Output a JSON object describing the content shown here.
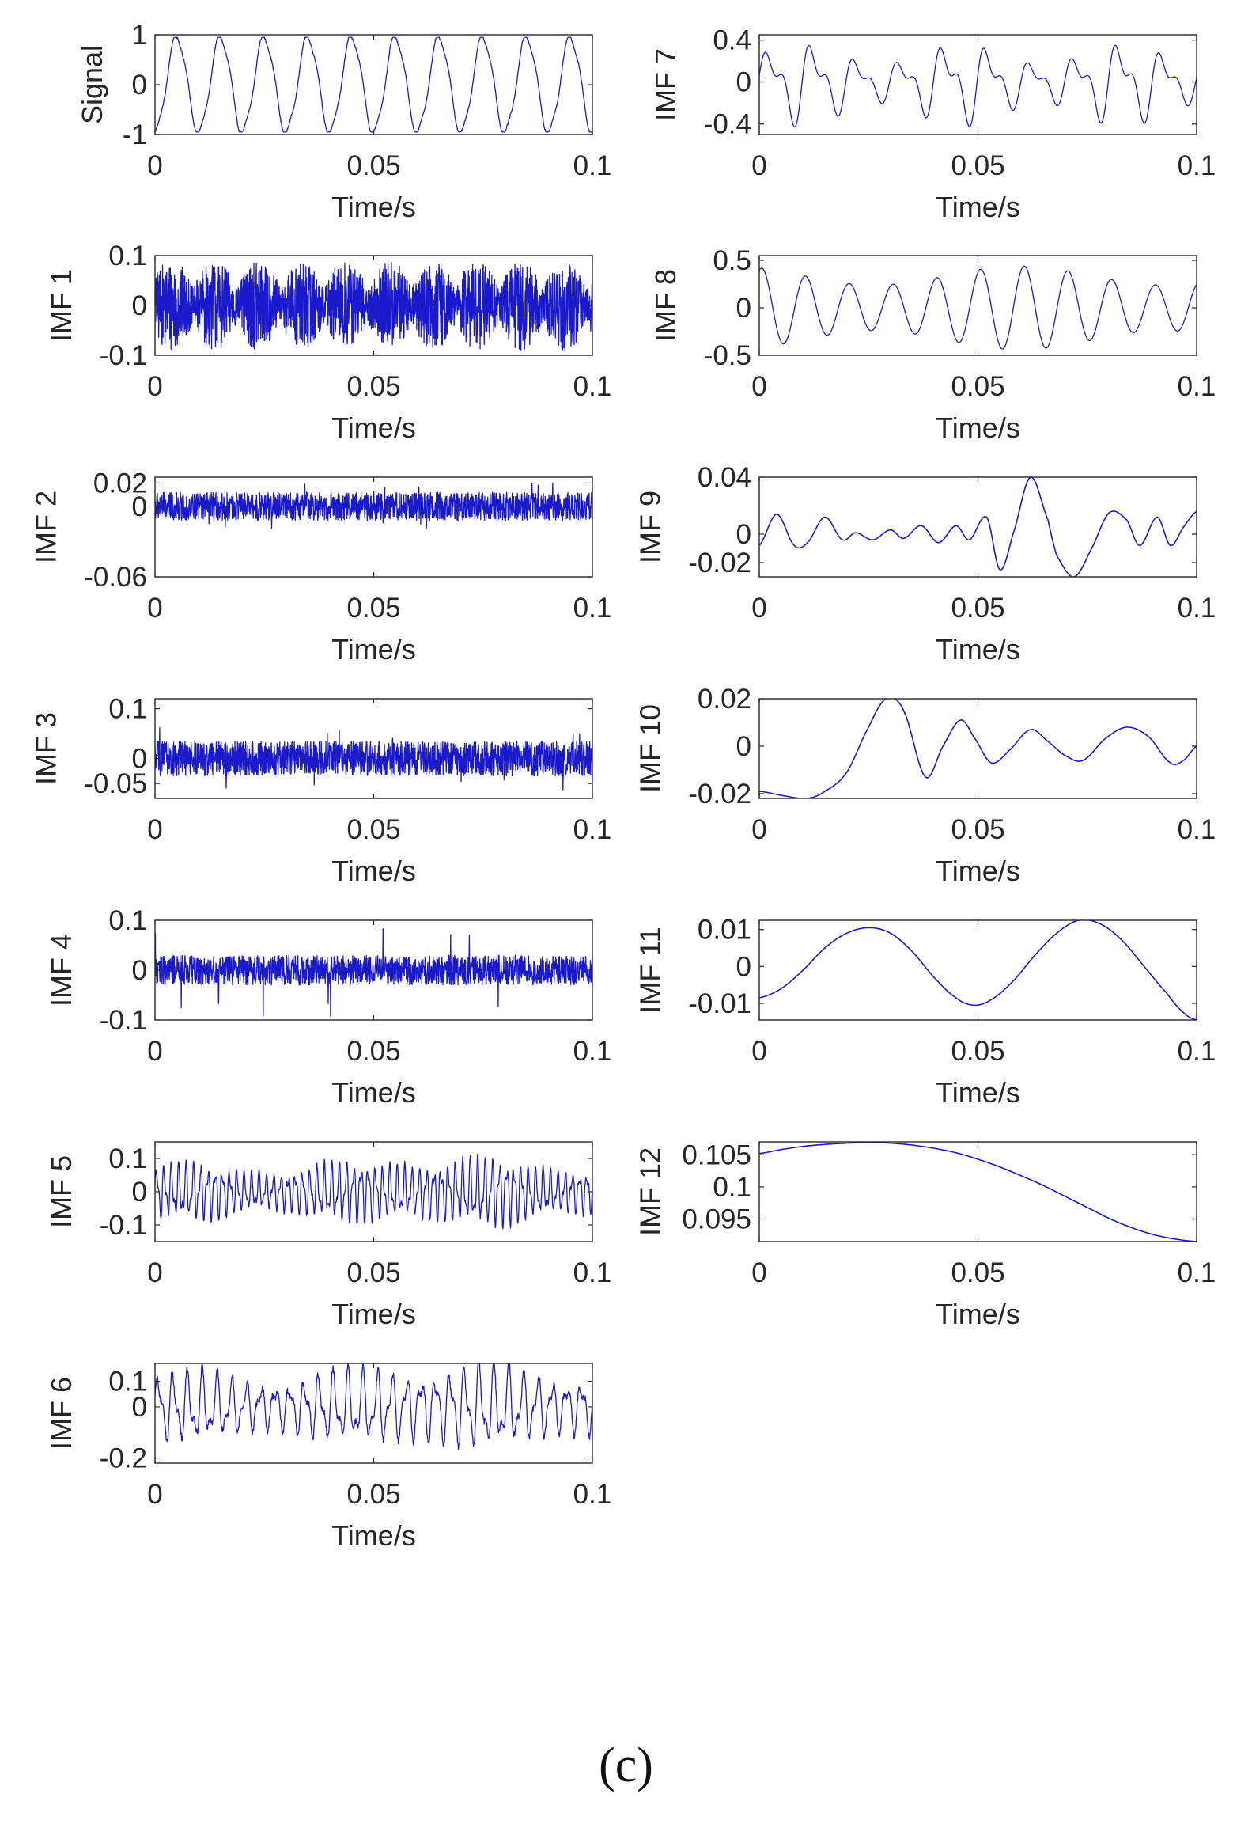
{
  "figure": {
    "caption": "(c)"
  },
  "colors": {
    "line": "#1a1acc",
    "axis": "#262626",
    "background": "#ffffff"
  },
  "chart_data": [
    {
      "type": "line",
      "ylabel": "Signal",
      "xlabel": "Time/s",
      "xlim": [
        0,
        0.1
      ],
      "ylim": [
        -1,
        1
      ],
      "xticks": [
        "0",
        "0.05",
        "0.1"
      ],
      "yticks": [
        {
          "v": 1,
          "label": "1"
        },
        {
          "v": 0,
          "label": "0"
        },
        {
          "v": -1,
          "label": "-1"
        }
      ],
      "waveform": {
        "kind": "signal",
        "cycles": 10,
        "amplitude": 0.95
      }
    },
    {
      "type": "line",
      "ylabel": "IMF 1",
      "xlabel": "Time/s",
      "xlim": [
        0,
        0.1
      ],
      "ylim": [
        -0.1,
        0.1
      ],
      "xticks": [
        "0",
        "0.05",
        "0.1"
      ],
      "yticks": [
        {
          "v": 0.1,
          "label": "0.1"
        },
        {
          "v": 0,
          "label": "0"
        },
        {
          "v": -0.1,
          "label": "-0.1"
        }
      ],
      "waveform": {
        "kind": "bursts",
        "cycles": 10,
        "amplitude": 0.09
      }
    },
    {
      "type": "line",
      "ylabel": "IMF 2",
      "xlabel": "Time/s",
      "xlim": [
        0,
        0.1
      ],
      "ylim": [
        -0.06,
        0.025
      ],
      "xticks": [
        "0",
        "0.05",
        "0.1"
      ],
      "yticks": [
        {
          "v": 0.02,
          "label": "0.02"
        },
        {
          "v": 0,
          "label": "0"
        },
        {
          "v": -0.06,
          "label": "-0.06"
        }
      ],
      "waveform": {
        "kind": "noise",
        "amplitude": 0.012,
        "peak": 0.02
      }
    },
    {
      "type": "line",
      "ylabel": "IMF 3",
      "xlabel": "Time/s",
      "xlim": [
        0,
        0.1
      ],
      "ylim": [
        -0.08,
        0.12
      ],
      "xticks": [
        "0",
        "0.05",
        "0.1"
      ],
      "yticks": [
        {
          "v": 0.1,
          "label": "0.1"
        },
        {
          "v": 0,
          "label": "0"
        },
        {
          "v": -0.05,
          "label": "-0.05"
        }
      ],
      "waveform": {
        "kind": "noise",
        "amplitude": 0.035,
        "peak": 0.065
      }
    },
    {
      "type": "line",
      "ylabel": "IMF 4",
      "xlabel": "Time/s",
      "xlim": [
        0,
        0.1
      ],
      "ylim": [
        -0.1,
        0.1
      ],
      "xticks": [
        "0",
        "0.05",
        "0.1"
      ],
      "yticks": [
        {
          "v": 0.1,
          "label": "0.1"
        },
        {
          "v": 0,
          "label": "0"
        },
        {
          "v": -0.1,
          "label": "-0.1"
        }
      ],
      "waveform": {
        "kind": "noise",
        "amplitude": 0.03,
        "peak": 0.1
      }
    },
    {
      "type": "line",
      "ylabel": "IMF 5",
      "xlabel": "Time/s",
      "xlim": [
        0,
        0.1
      ],
      "ylim": [
        -0.15,
        0.15
      ],
      "xticks": [
        "0",
        "0.05",
        "0.1"
      ],
      "yticks": [
        {
          "v": 0.1,
          "label": "0.1"
        },
        {
          "v": 0,
          "label": "0"
        },
        {
          "v": -0.1,
          "label": "-0.1"
        }
      ],
      "waveform": {
        "kind": "oscillation",
        "cycles": 60,
        "amplitude": 0.06,
        "peak": 0.15
      }
    },
    {
      "type": "line",
      "ylabel": "IMF 6",
      "xlabel": "Time/s",
      "xlim": [
        0,
        0.1
      ],
      "ylim": [
        -0.22,
        0.17
      ],
      "xticks": [
        "0",
        "0.05",
        "0.1"
      ],
      "yticks": [
        {
          "v": 0.1,
          "label": "0.1"
        },
        {
          "v": 0,
          "label": "0"
        },
        {
          "v": -0.2,
          "label": "-0.2"
        }
      ],
      "waveform": {
        "kind": "oscillation",
        "cycles": 30,
        "amplitude": 0.1,
        "peak": 0.2
      }
    },
    {
      "type": "line",
      "ylabel": "IMF 7",
      "xlabel": "Time/s",
      "xlim": [
        0,
        0.1
      ],
      "ylim": [
        -0.5,
        0.45
      ],
      "xticks": [
        "0",
        "0.05",
        "0.1"
      ],
      "yticks": [
        {
          "v": 0.4,
          "label": "0.4"
        },
        {
          "v": 0,
          "label": "0"
        },
        {
          "v": -0.4,
          "label": "-0.4"
        }
      ],
      "waveform": {
        "kind": "imf7",
        "cycles": 20,
        "amplitude": 0.32
      }
    },
    {
      "type": "line",
      "ylabel": "IMF 8",
      "xlabel": "Time/s",
      "xlim": [
        0,
        0.1
      ],
      "ylim": [
        -0.5,
        0.55
      ],
      "xticks": [
        "0",
        "0.05",
        "0.1"
      ],
      "yticks": [
        {
          "v": 0.5,
          "label": "0.5"
        },
        {
          "v": 0,
          "label": "0"
        },
        {
          "v": -0.5,
          "label": "-0.5"
        }
      ],
      "waveform": {
        "kind": "sine-mod",
        "cycles": 10,
        "amplitude": 0.4
      }
    },
    {
      "type": "line",
      "ylabel": "IMF 9",
      "xlabel": "Time/s",
      "xlim": [
        0,
        0.1
      ],
      "ylim": [
        -0.03,
        0.04
      ],
      "xticks": [
        "0",
        "0.05",
        "0.1"
      ],
      "yticks": [
        {
          "v": 0.04,
          "label": "0.04"
        },
        {
          "v": 0,
          "label": "0"
        },
        {
          "v": -0.02,
          "label": "-0.02"
        }
      ],
      "points": [
        [
          0,
          -0.008
        ],
        [
          0.004,
          0.014
        ],
        [
          0.008,
          -0.008
        ],
        [
          0.011,
          -0.006
        ],
        [
          0.015,
          0.012
        ],
        [
          0.019,
          -0.004
        ],
        [
          0.022,
          0.001
        ],
        [
          0.026,
          -0.004
        ],
        [
          0.03,
          0.003
        ],
        [
          0.033,
          -0.003
        ],
        [
          0.037,
          0.006
        ],
        [
          0.041,
          -0.006
        ],
        [
          0.045,
          0.006
        ],
        [
          0.048,
          -0.004
        ],
        [
          0.052,
          0.012
        ],
        [
          0.055,
          -0.025
        ],
        [
          0.058,
          0.0
        ],
        [
          0.062,
          0.04
        ],
        [
          0.066,
          0.01
        ],
        [
          0.068,
          -0.015
        ],
        [
          0.072,
          -0.03
        ],
        [
          0.076,
          -0.01
        ],
        [
          0.08,
          0.015
        ],
        [
          0.084,
          0.01
        ],
        [
          0.087,
          -0.008
        ],
        [
          0.091,
          0.012
        ],
        [
          0.094,
          -0.008
        ],
        [
          0.097,
          0.005
        ],
        [
          0.1,
          0.016
        ]
      ]
    },
    {
      "type": "line",
      "ylabel": "IMF 10",
      "xlabel": "Time/s",
      "xlim": [
        0,
        0.1
      ],
      "ylim": [
        -0.022,
        0.02
      ],
      "xticks": [
        "0",
        "0.05",
        "0.1"
      ],
      "yticks": [
        {
          "v": 0.02,
          "label": "0.02"
        },
        {
          "v": 0,
          "label": "0"
        },
        {
          "v": -0.02,
          "label": "-0.02"
        }
      ],
      "points": [
        [
          0,
          -0.019
        ],
        [
          0.006,
          -0.021
        ],
        [
          0.011,
          -0.022
        ],
        [
          0.015,
          -0.019
        ],
        [
          0.02,
          -0.011
        ],
        [
          0.025,
          0.008
        ],
        [
          0.029,
          0.02
        ],
        [
          0.033,
          0.015
        ],
        [
          0.038,
          -0.013
        ],
        [
          0.042,
          0.0
        ],
        [
          0.046,
          0.011
        ],
        [
          0.049,
          0.004
        ],
        [
          0.053,
          -0.007
        ],
        [
          0.057,
          -0.002
        ],
        [
          0.062,
          0.007
        ],
        [
          0.066,
          0.002
        ],
        [
          0.07,
          -0.004
        ],
        [
          0.074,
          -0.006
        ],
        [
          0.079,
          0.003
        ],
        [
          0.084,
          0.008
        ],
        [
          0.089,
          0.004
        ],
        [
          0.094,
          -0.007
        ],
        [
          0.097,
          -0.006
        ],
        [
          0.1,
          0.0
        ]
      ]
    },
    {
      "type": "line",
      "ylabel": "IMF 11",
      "xlabel": "Time/s",
      "xlim": [
        0,
        0.1
      ],
      "ylim": [
        -0.0145,
        0.0125
      ],
      "xticks": [
        "0",
        "0.05",
        "0.1"
      ],
      "yticks": [
        {
          "v": 0.01,
          "label": "0.01"
        },
        {
          "v": 0,
          "label": "0"
        },
        {
          "v": -0.01,
          "label": "-0.01"
        }
      ],
      "points": [
        [
          0,
          -0.0085
        ],
        [
          0.005,
          -0.006
        ],
        [
          0.01,
          -0.001
        ],
        [
          0.015,
          0.005
        ],
        [
          0.02,
          0.009
        ],
        [
          0.025,
          0.0105
        ],
        [
          0.03,
          0.009
        ],
        [
          0.035,
          0.004
        ],
        [
          0.04,
          -0.003
        ],
        [
          0.045,
          -0.0085
        ],
        [
          0.049,
          -0.0105
        ],
        [
          0.053,
          -0.009
        ],
        [
          0.058,
          -0.004
        ],
        [
          0.063,
          0.003
        ],
        [
          0.068,
          0.009
        ],
        [
          0.073,
          0.0125
        ],
        [
          0.078,
          0.0115
        ],
        [
          0.083,
          0.007
        ],
        [
          0.088,
          0.0
        ],
        [
          0.093,
          -0.007
        ],
        [
          0.097,
          -0.0125
        ],
        [
          0.1,
          -0.0145
        ]
      ]
    },
    {
      "type": "line",
      "ylabel": "IMF 12",
      "xlabel": "Time/s",
      "xlim": [
        0,
        0.1
      ],
      "ylim": [
        0.0915,
        0.107
      ],
      "xticks": [
        "0",
        "0.05",
        "0.1"
      ],
      "yticks": [
        {
          "v": 0.105,
          "label": "0.105"
        },
        {
          "v": 0.1,
          "label": "0.1"
        },
        {
          "v": 0.095,
          "label": "0.095"
        }
      ],
      "points": [
        [
          0,
          0.1052
        ],
        [
          0.005,
          0.1058
        ],
        [
          0.01,
          0.1063
        ],
        [
          0.015,
          0.1066
        ],
        [
          0.02,
          0.1068
        ],
        [
          0.025,
          0.1069
        ],
        [
          0.03,
          0.1068
        ],
        [
          0.035,
          0.1065
        ],
        [
          0.04,
          0.106
        ],
        [
          0.045,
          0.1053
        ],
        [
          0.05,
          0.1043
        ],
        [
          0.055,
          0.1031
        ],
        [
          0.06,
          0.1017
        ],
        [
          0.065,
          0.1002
        ],
        [
          0.07,
          0.0985
        ],
        [
          0.075,
          0.0968
        ],
        [
          0.08,
          0.0951
        ],
        [
          0.085,
          0.0937
        ],
        [
          0.09,
          0.0926
        ],
        [
          0.095,
          0.0919
        ],
        [
          0.1,
          0.0915
        ]
      ]
    }
  ]
}
